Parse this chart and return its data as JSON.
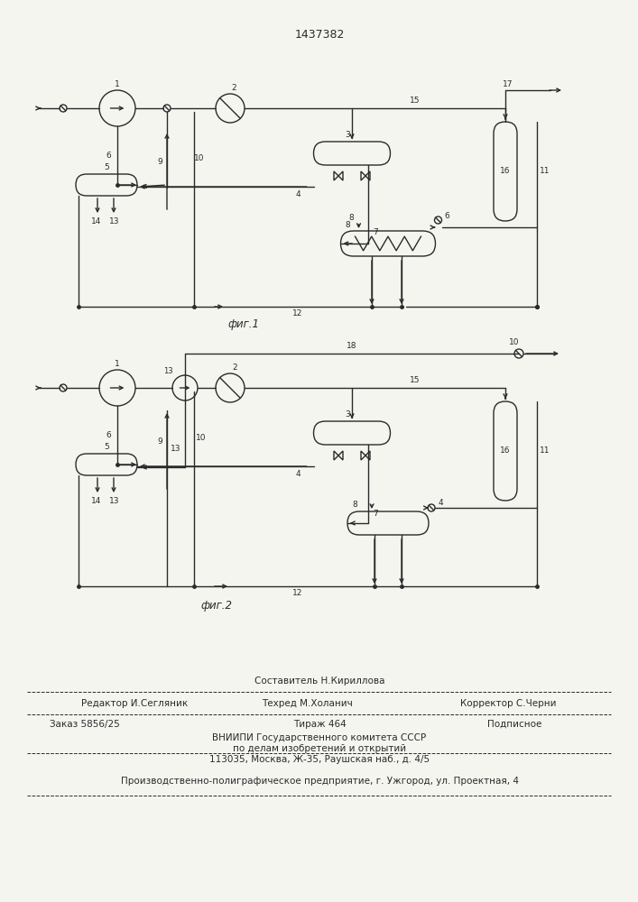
{
  "title": "1437382",
  "fig1_label": "фиг.1",
  "fig2_label": "фиг.2",
  "bg_color": "#f5f5f0",
  "line_color": "#2a2a2a",
  "footer": {
    "line1_left": "Редактор И.Сегляник",
    "line1_center": "Составитель Н.Кириллова",
    "line2_center": "Техред М.Холанич",
    "line2_right": "Корректор С.Черни",
    "line3_left": "Заказ 5856/25",
    "line3_center": "Тираж 464",
    "line3_right": "Подписное",
    "line4": "ВНИИПИ Государственного комитета СССР",
    "line5": "по делам изобретений и открытий",
    "line6": "113035, Москва, Ж-35, Раушская наб., д. 4/5",
    "line7": "Производственно-полиграфическое предприятие, г. Ужгород, ул. Проектная, 4"
  }
}
